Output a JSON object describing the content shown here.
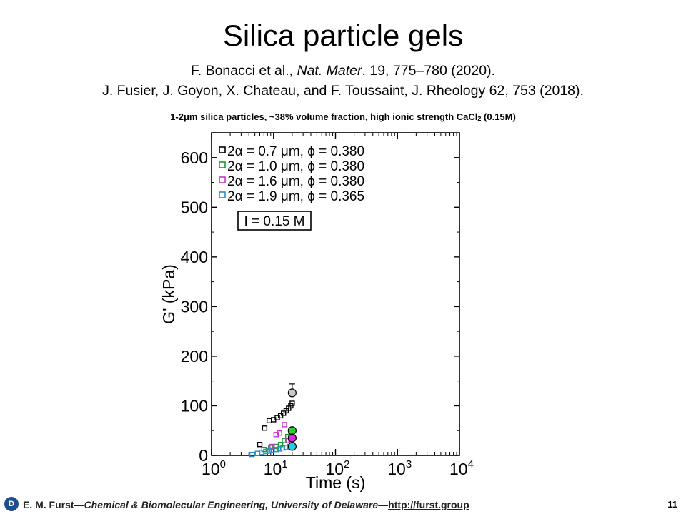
{
  "slide": {
    "title": "Silica particle gels",
    "ref1": {
      "authors": "F. Bonacci et al., ",
      "journal": "Nat. Mater",
      "rest": ". 19, 775–780 (2020)."
    },
    "ref2": "J. Fusier, J. Goyon, X. Chateau, and F. Toussaint, J. Rheology 62, 753 (2018).",
    "description": {
      "main": "1-2μm silica particles, ~38% volume fraction, high ionic strength CaCl",
      "sub": "2",
      "tail": " (0.15M)"
    },
    "footer": {
      "logo": "D",
      "author": "E. M. Furst",
      "dash1": "—",
      "affiliation": "Chemical & Biomolecular Engineering, University of Delaware",
      "dash2": "—",
      "link": "http://furst.group",
      "page": "11"
    }
  },
  "chart_data": {
    "type": "scatter",
    "xlabel": "Time (s)",
    "ylabel": "G' (kPa)",
    "xscale": "log",
    "xlim": [
      1,
      10000
    ],
    "ylim": [
      0,
      650
    ],
    "yticks": [
      0,
      100,
      200,
      300,
      400,
      500,
      600
    ],
    "xticks": [
      {
        "base": "10",
        "exp": "0"
      },
      {
        "base": "10",
        "exp": "1"
      },
      {
        "base": "10",
        "exp": "2"
      },
      {
        "base": "10",
        "exp": "3"
      },
      {
        "base": "10",
        "exp": "4"
      }
    ],
    "annotation": "I = 0.15 M",
    "legend_placement": "top-left",
    "series": [
      {
        "name": "2α = 0.7 μm, ϕ = 0.380",
        "color": "#000000",
        "x": [
          6.0,
          7.2,
          8.5,
          10.0,
          11.5,
          13.0,
          14.5,
          16.0,
          17.5,
          19.0,
          20.0
        ],
        "y": [
          22,
          55,
          70,
          72,
          76,
          80,
          85,
          90,
          95,
          100,
          105
        ]
      },
      {
        "name": "2α = 1.0 μm, ϕ = 0.380",
        "color": "#1a9b2c",
        "x": [
          7.0,
          9.0,
          11.0,
          13.0,
          15.0,
          17.0,
          19.0
        ],
        "y": [
          12,
          16,
          18,
          22,
          30,
          38,
          42
        ]
      },
      {
        "name": "2α = 1.6 μm, ϕ = 0.380",
        "color": "#cc33cc",
        "x": [
          9.5,
          11.0,
          12.5,
          15.0,
          17.0,
          19.0
        ],
        "y": [
          18,
          42,
          45,
          62,
          30,
          33
        ]
      },
      {
        "name": "2α = 1.9 μm, ϕ = 0.365",
        "color": "#2b8fc7",
        "x": [
          4.5,
          5.5,
          6.5,
          7.5,
          8.5,
          9.5,
          11.0,
          12.5,
          14.0,
          16.0,
          18.0
        ],
        "y": [
          2,
          4,
          6,
          8,
          9,
          11,
          12,
          13,
          15,
          16,
          18
        ]
      }
    ],
    "endpoints": [
      {
        "x": 20,
        "y": 126,
        "fill": "#c8c8c8",
        "error": 18
      },
      {
        "x": 20,
        "y": 50,
        "fill": "#2bd12b",
        "error": 0
      },
      {
        "x": 20,
        "y": 35,
        "fill": "#e026e0",
        "error": 0
      },
      {
        "x": 20,
        "y": 18,
        "fill": "#1fd3e6",
        "error": 0
      }
    ]
  }
}
